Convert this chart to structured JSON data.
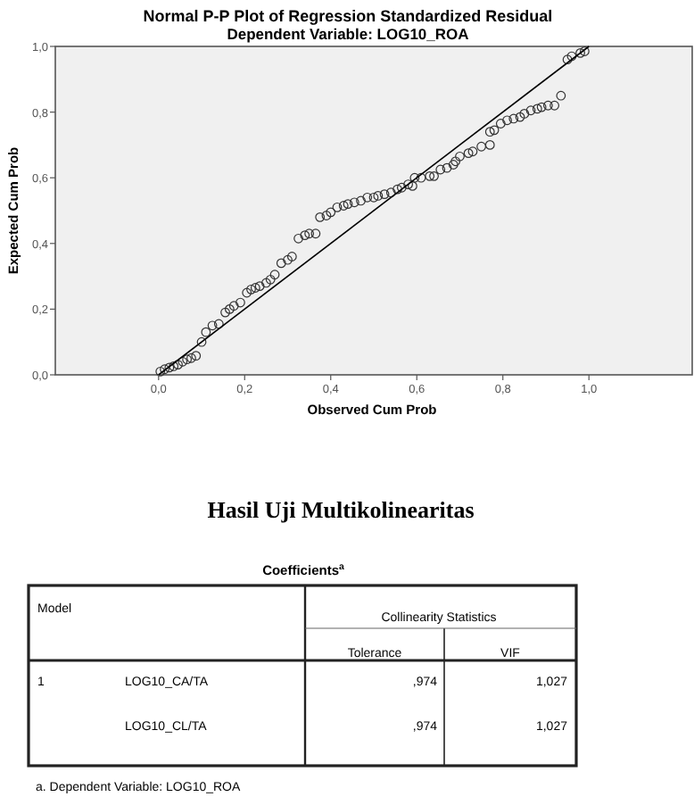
{
  "chart_data": [
    {
      "type": "scatter",
      "title": "Normal P-P Plot of Regression Standardized Residual",
      "subtitle": "Dependent Variable: LOG10_ROA",
      "xlabel": "Observed Cum Prob",
      "ylabel": "Expected Cum Prob",
      "xlim": [
        -0.24,
        1.24
      ],
      "ylim": [
        0,
        1
      ],
      "xticks": [
        {
          "value": 0,
          "label": "0,0"
        },
        {
          "value": 0.2,
          "label": "0,2"
        },
        {
          "value": 0.4,
          "label": "0,4"
        },
        {
          "value": 0.6,
          "label": "0,6"
        },
        {
          "value": 0.8,
          "label": "0,8"
        },
        {
          "value": 1,
          "label": "1,0"
        }
      ],
      "yticks": [
        {
          "value": 0,
          "label": "0,0"
        },
        {
          "value": 0.2,
          "label": "0,2"
        },
        {
          "value": 0.4,
          "label": "0,4"
        },
        {
          "value": 0.6,
          "label": "0,6"
        },
        {
          "value": 0.8,
          "label": "0,8"
        },
        {
          "value": 1,
          "label": "1,0"
        }
      ],
      "grid": false,
      "series": [
        {
          "type": "scatter",
          "color": "#333333",
          "marker": "circle",
          "x": [
            0.004,
            0.014,
            0.025,
            0.035,
            0.045,
            0.056,
            0.066,
            0.076,
            0.087,
            0.1,
            0.11,
            0.125,
            0.14,
            0.155,
            0.165,
            0.175,
            0.19,
            0.205,
            0.215,
            0.225,
            0.235,
            0.25,
            0.26,
            0.27,
            0.285,
            0.3,
            0.31,
            0.325,
            0.34,
            0.35,
            0.365,
            0.375,
            0.39,
            0.4,
            0.415,
            0.43,
            0.44,
            0.455,
            0.47,
            0.485,
            0.5,
            0.51,
            0.525,
            0.54,
            0.555,
            0.565,
            0.58,
            0.59,
            0.595,
            0.61,
            0.63,
            0.64,
            0.655,
            0.67,
            0.685,
            0.69,
            0.7,
            0.72,
            0.73,
            0.75,
            0.77,
            0.77,
            0.78,
            0.795,
            0.81,
            0.825,
            0.84,
            0.85,
            0.865,
            0.88,
            0.89,
            0.905,
            0.92,
            0.935,
            0.95,
            0.96,
            0.98,
            0.99
          ],
          "values": [
            0.01,
            0.017,
            0.022,
            0.026,
            0.031,
            0.04,
            0.047,
            0.051,
            0.058,
            0.1,
            0.13,
            0.15,
            0.155,
            0.19,
            0.2,
            0.21,
            0.22,
            0.25,
            0.26,
            0.265,
            0.27,
            0.28,
            0.29,
            0.305,
            0.34,
            0.35,
            0.36,
            0.415,
            0.425,
            0.43,
            0.43,
            0.48,
            0.485,
            0.495,
            0.51,
            0.515,
            0.52,
            0.525,
            0.53,
            0.54,
            0.54,
            0.545,
            0.55,
            0.555,
            0.565,
            0.57,
            0.58,
            0.575,
            0.6,
            0.6,
            0.605,
            0.605,
            0.625,
            0.63,
            0.64,
            0.65,
            0.665,
            0.675,
            0.68,
            0.695,
            0.7,
            0.74,
            0.745,
            0.765,
            0.775,
            0.78,
            0.785,
            0.795,
            0.805,
            0.81,
            0.815,
            0.82,
            0.82,
            0.85,
            0.96,
            0.97,
            0.98,
            0.985
          ]
        },
        {
          "type": "line",
          "color": "#000000",
          "x": [
            0,
            1
          ],
          "values": [
            0,
            1
          ],
          "marker": "none"
        }
      ]
    },
    {
      "type": "other",
      "title": "Hasil Uji Multikolinearitas",
      "subtitle": "Coefficients$^{a}$",
      "annotations": [
        "Model",
        "Collinearity Statistics",
        "Tolerance",
        "VIF",
        "1",
        "LOG10_CA/TA",
        ",974",
        "1,027",
        "LOG10_CL/TA",
        ",974",
        "1,027",
        "a. Dependent Variable: LOG10_ROA"
      ]
    }
  ]
}
